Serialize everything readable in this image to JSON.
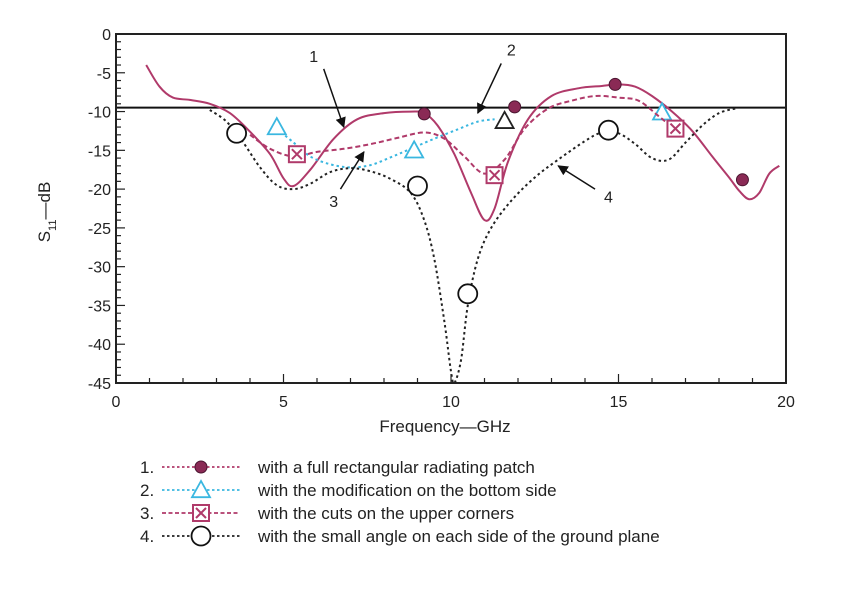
{
  "chart_data": {
    "type": "line",
    "xlabel": "Frequency—GHz",
    "ylabel_main": "S",
    "ylabel_sub": "11",
    "ylabel_rest": "—dB",
    "xlim": [
      0,
      20
    ],
    "ylim": [
      -45,
      0
    ],
    "xticks": [
      0,
      5,
      10,
      15,
      20
    ],
    "yticks": [
      0,
      -5,
      -10,
      -15,
      -20,
      -25,
      -30,
      -35,
      -40,
      -45
    ],
    "reference_line_y": -9.5,
    "series": [
      {
        "id": "s1",
        "color": "#b03a6a",
        "dash": "solid",
        "marker": "filled-circle",
        "x": [
          0.9,
          1.3,
          1.7,
          2.2,
          2.8,
          3.4,
          4.0,
          4.6,
          5.0,
          5.3,
          5.8,
          6.5,
          7.2,
          8.0,
          8.8,
          9.2,
          9.6,
          10.1,
          10.6,
          11.0,
          11.3,
          11.7,
          12.3,
          13.0,
          13.8,
          14.5,
          15.0,
          15.5,
          16.0,
          16.6,
          17.2,
          17.8,
          18.3,
          18.6,
          18.9,
          19.2,
          19.5,
          19.8
        ],
        "y": [
          -4,
          -6.8,
          -8.2,
          -8.5,
          -9.0,
          -10.2,
          -12.6,
          -15.5,
          -18.6,
          -19.6,
          -17.5,
          -13.5,
          -11.0,
          -10.2,
          -10.0,
          -10.2,
          -11.8,
          -15.5,
          -20.5,
          -24.0,
          -22.5,
          -16.5,
          -11.0,
          -8.0,
          -7.0,
          -6.7,
          -6.5,
          -6.8,
          -8.0,
          -10.0,
          -12.5,
          -15.8,
          -18.5,
          -20.2,
          -21.3,
          -20.5,
          -18.0,
          -17.0
        ],
        "markers_x": [
          9.2,
          11.9,
          14.9,
          18.7
        ],
        "markers_y": [
          -10.3,
          -9.4,
          -6.5,
          -18.8
        ]
      },
      {
        "id": "s2",
        "color": "#3ab7e0",
        "dash": "dotted",
        "marker": "open-triangle",
        "x": [
          4.8,
          5.3,
          5.8,
          6.4,
          7.0,
          7.6,
          8.2,
          8.8,
          9.5,
          10.2,
          10.8,
          11.3
        ],
        "y": [
          -12.2,
          -14.0,
          -15.8,
          -16.8,
          -17.2,
          -16.9,
          -15.9,
          -14.8,
          -13.5,
          -12.3,
          -11.3,
          -11.0
        ],
        "markers_x": [
          4.8,
          8.9,
          16.3,
          11.6
        ],
        "markers_y": [
          -12.0,
          -15.0,
          -10.1,
          -11.2
        ],
        "marker_colors": [
          "#3ab7e0",
          "#3ab7e0",
          "#3ab7e0",
          "#222222"
        ]
      },
      {
        "id": "s3",
        "color": "#b03a6a",
        "dash": "dashed",
        "marker": "boxed-x",
        "x": [
          4.0,
          4.6,
          5.3,
          6.0,
          6.8,
          7.6,
          8.4,
          9.2,
          9.8,
          10.4,
          11.0,
          11.6,
          12.2,
          12.9,
          13.6,
          14.3,
          15.0,
          15.6,
          16.2,
          16.6
        ],
        "y": [
          -13.0,
          -14.8,
          -15.8,
          -15.2,
          -14.8,
          -14.2,
          -13.4,
          -12.7,
          -13.5,
          -15.8,
          -18.0,
          -16.2,
          -12.2,
          -9.6,
          -8.6,
          -8.0,
          -8.2,
          -8.6,
          -10.6,
          -12.0
        ],
        "markers_x": [
          5.4,
          11.3,
          16.7
        ],
        "markers_y": [
          -15.5,
          -18.2,
          -12.2
        ]
      },
      {
        "id": "s4",
        "color": "#222222",
        "dash": "dotted",
        "marker": "open-circle",
        "x": [
          2.8,
          3.3,
          3.8,
          4.3,
          4.8,
          5.3,
          5.8,
          6.4,
          7.0,
          7.6,
          8.2,
          8.8,
          9.2,
          9.5,
          9.8,
          10.0,
          10.1,
          10.3,
          10.5,
          10.8,
          11.2,
          11.8,
          12.5,
          13.2,
          14.0,
          14.5,
          15.0,
          15.5,
          16.0,
          16.5,
          17.0,
          17.5,
          18.0,
          18.5
        ],
        "y": [
          -9.8,
          -11.3,
          -14.0,
          -17.2,
          -19.5,
          -20.0,
          -19.3,
          -17.8,
          -17.3,
          -17.7,
          -18.7,
          -20.5,
          -24.0,
          -29.0,
          -37.0,
          -43.5,
          -45.0,
          -42.0,
          -35.0,
          -29.0,
          -25.0,
          -21.5,
          -18.5,
          -16.2,
          -13.8,
          -12.7,
          -12.8,
          -14.2,
          -16.0,
          -16.2,
          -14.0,
          -11.8,
          -10.2,
          -9.6
        ],
        "markers_x": [
          3.6,
          9.0,
          10.5,
          14.7
        ],
        "markers_y": [
          -12.8,
          -19.6,
          -33.5,
          -12.4
        ]
      }
    ],
    "annotations": [
      {
        "label": "1",
        "text_x": 5.9,
        "text_y": -3.6,
        "arrow_from": [
          6.2,
          -4.5
        ],
        "arrow_to": [
          6.8,
          -12.0
        ]
      },
      {
        "label": "2",
        "text_x": 11.8,
        "text_y": -2.8,
        "arrow_from": [
          11.5,
          -3.8
        ],
        "arrow_to": [
          10.8,
          -10.2
        ]
      },
      {
        "label": "3",
        "text_x": 6.5,
        "text_y": -22.3,
        "arrow_from": [
          6.7,
          -20.0
        ],
        "arrow_to": [
          7.4,
          -15.2
        ]
      },
      {
        "label": "4",
        "text_x": 14.7,
        "text_y": -21.7,
        "arrow_from": [
          14.3,
          -20.0
        ],
        "arrow_to": [
          13.2,
          -17.0
        ]
      }
    ],
    "legend": [
      {
        "num": "1.",
        "text": "with a full rectangular radiating patch"
      },
      {
        "num": "2.",
        "text": "with the modification on the bottom side"
      },
      {
        "num": "3.",
        "text": "with the cuts on the upper corners"
      },
      {
        "num": "4.",
        "text": "with the small angle on each side of the ground plane"
      }
    ]
  }
}
